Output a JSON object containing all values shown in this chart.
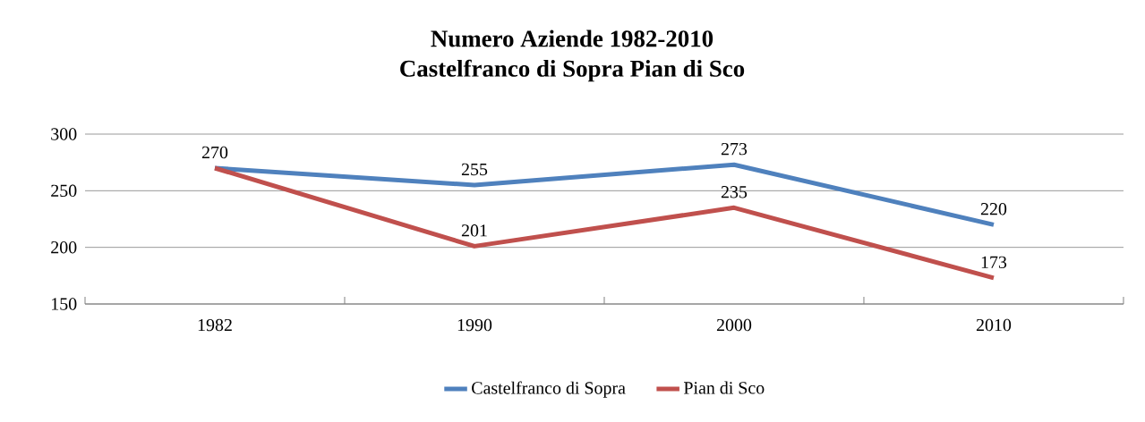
{
  "chart_data": {
    "type": "line",
    "title": "Numero Aziende 1982-2010",
    "subtitle": "Castelfranco di Sopra Pian di Sco",
    "categories": [
      "1982",
      "1990",
      "2000",
      "2010"
    ],
    "series": [
      {
        "name": "Castelfranco di Sopra",
        "color": "#4f81bd",
        "values": [
          270,
          255,
          273,
          220
        ],
        "value_labels": [
          "270",
          "255",
          "273",
          "220"
        ]
      },
      {
        "name": "Pian di Sco",
        "color": "#c0504d",
        "values": [
          270,
          201,
          235,
          173
        ],
        "value_labels": [
          null,
          "201",
          "235",
          "173"
        ]
      }
    ],
    "ylim": [
      150,
      300
    ],
    "yticks": [
      150,
      200,
      250,
      300
    ],
    "grid": "y",
    "legend": "bottom"
  }
}
